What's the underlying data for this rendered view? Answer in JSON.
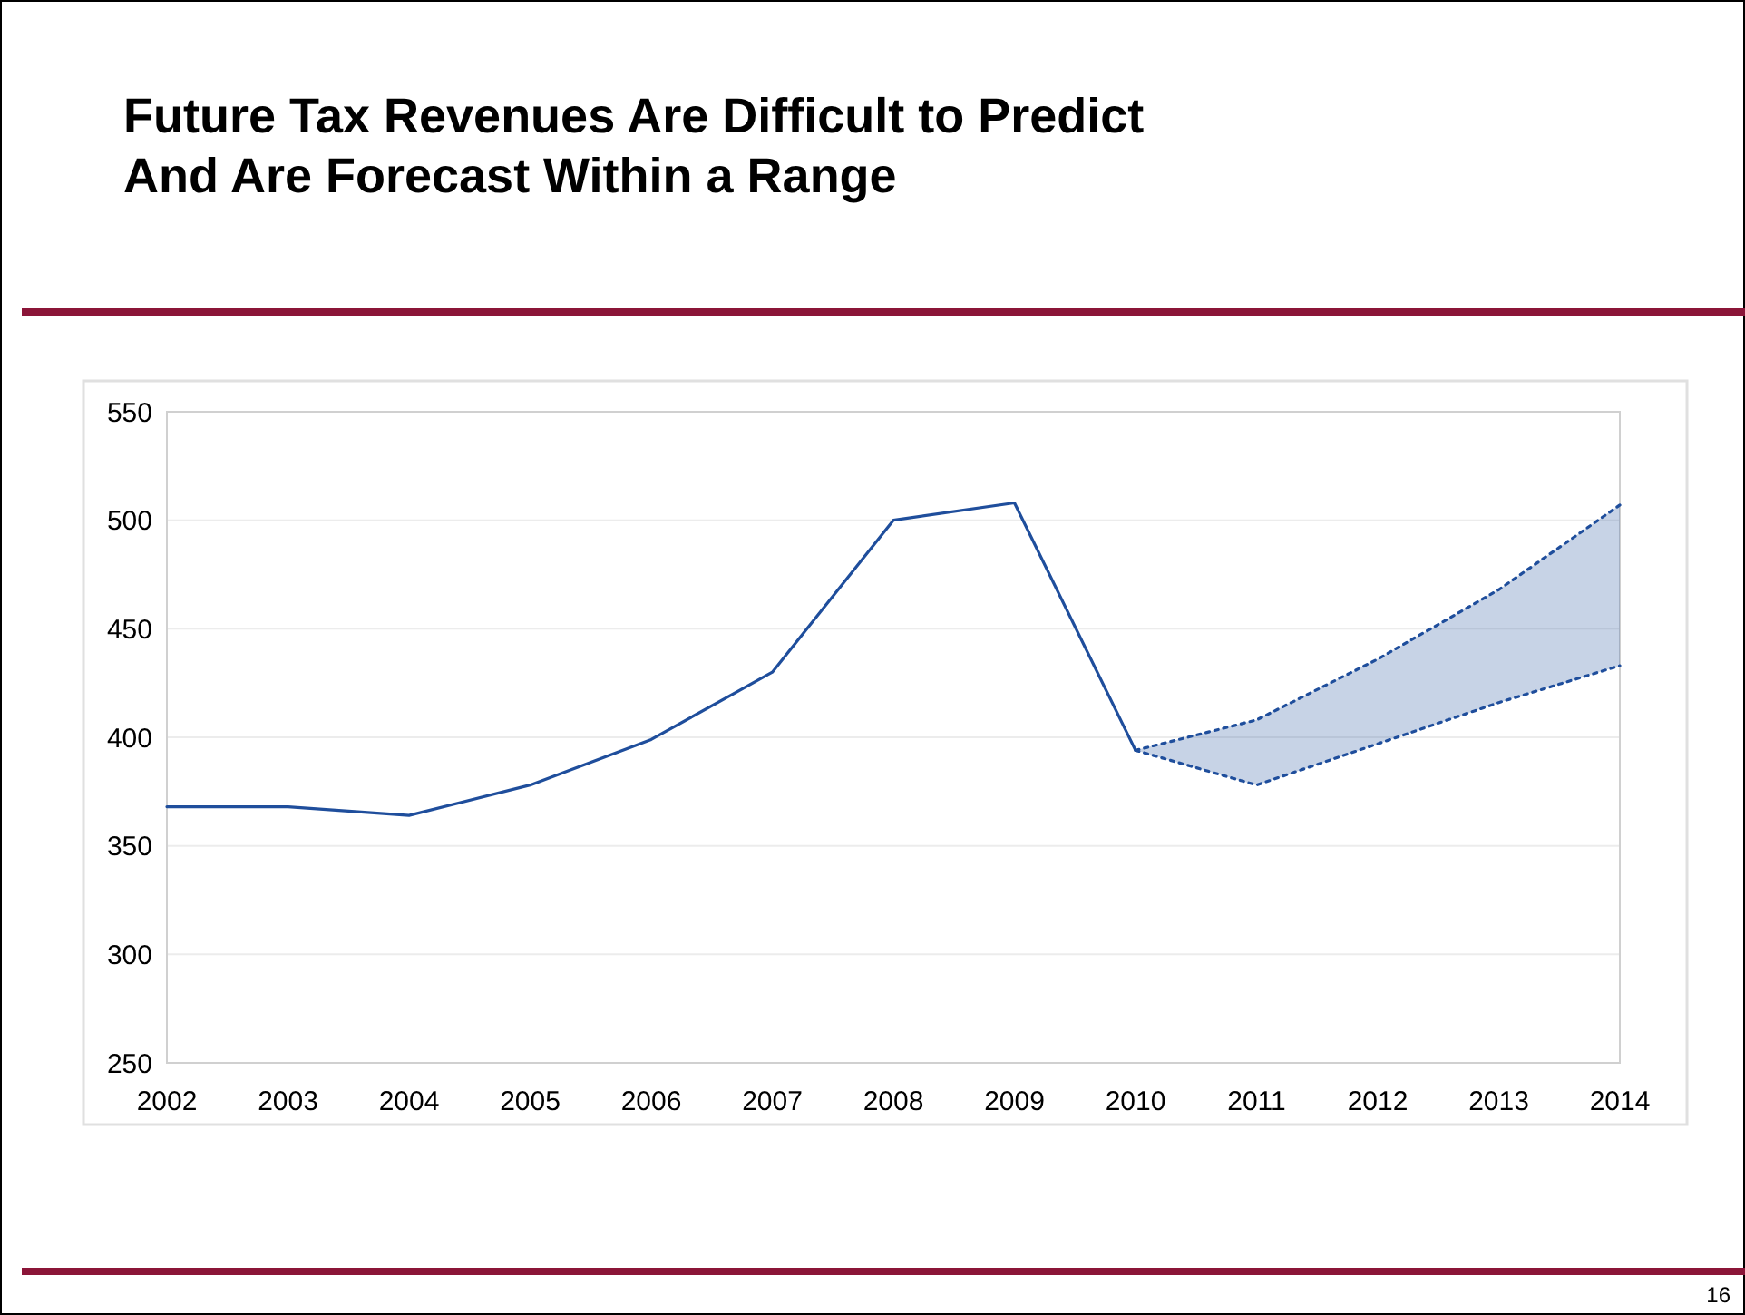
{
  "chart_data": {
    "type": "line",
    "title": "Future Tax Revenues Are Difficult to Predict\nAnd Are Forecast Within a Range",
    "xlim": [
      2002,
      2014
    ],
    "xticks": [
      2002,
      2003,
      2004,
      2005,
      2006,
      2007,
      2008,
      2009,
      2010,
      2011,
      2012,
      2013,
      2014
    ],
    "ylim": [
      250,
      550
    ],
    "yticks": [
      250,
      300,
      350,
      400,
      450,
      500,
      550
    ],
    "grid": "y",
    "series": [
      {
        "color": "#1f4e9c",
        "line_style": "solid",
        "x": [
          2002,
          2003,
          2004,
          2005,
          2006,
          2007,
          2008,
          2009,
          2010
        ],
        "values": [
          368,
          368,
          364,
          378,
          399,
          430,
          500,
          508,
          394
        ]
      },
      {
        "color": "#1f4e9c",
        "line_style": "dotted",
        "x": [
          2010,
          2011,
          2012,
          2013,
          2014
        ],
        "values": [
          394,
          408,
          436,
          468,
          507
        ],
        "lower": [
          394,
          378,
          397,
          416,
          433
        ],
        "upper": [
          394,
          408,
          436,
          468,
          507
        ]
      },
      {
        "color": "#1f4e9c",
        "line_style": "dotted",
        "x": [
          2010,
          2011,
          2012,
          2013,
          2014
        ],
        "values": [
          394,
          378,
          397,
          416,
          433
        ]
      }
    ],
    "annotations": [
      "16"
    ]
  }
}
